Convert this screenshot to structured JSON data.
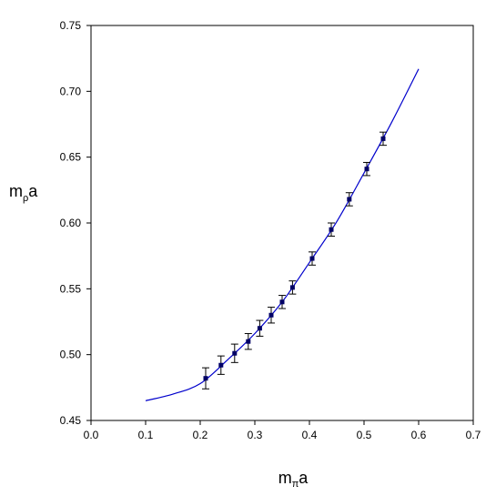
{
  "chart_data": {
    "type": "scatter",
    "title": "",
    "xlabel": {
      "base": "m",
      "sub": "π",
      "suffix": "a"
    },
    "ylabel": {
      "base": "m",
      "sub": "ρ",
      "suffix": "a"
    },
    "xlim": [
      0.0,
      0.7
    ],
    "ylim": [
      0.45,
      0.75
    ],
    "x_ticks": [
      0.0,
      0.1,
      0.2,
      0.3,
      0.4,
      0.5,
      0.6,
      0.7
    ],
    "x_tick_labels": [
      "0.0",
      "0.1",
      "0.2",
      "0.3",
      "0.4",
      "0.5",
      "0.6",
      "0.7"
    ],
    "y_ticks": [
      0.45,
      0.5,
      0.55,
      0.6,
      0.65,
      0.7,
      0.75
    ],
    "y_tick_labels": [
      "0.45",
      "0.50",
      "0.55",
      "0.60",
      "0.65",
      "0.70",
      "0.75"
    ],
    "grid": false,
    "legend": "none",
    "colors": {
      "fit_line": "#0000cc",
      "points": "#000066",
      "error_bars": "#000000",
      "axes": "#000000"
    },
    "series": [
      {
        "kind": "points-with-error-bars",
        "points": [
          {
            "x": 0.21,
            "y": 0.482,
            "err": 0.008
          },
          {
            "x": 0.238,
            "y": 0.492,
            "err": 0.007
          },
          {
            "x": 0.263,
            "y": 0.501,
            "err": 0.007
          },
          {
            "x": 0.288,
            "y": 0.51,
            "err": 0.006
          },
          {
            "x": 0.309,
            "y": 0.52,
            "err": 0.006
          },
          {
            "x": 0.33,
            "y": 0.53,
            "err": 0.006
          },
          {
            "x": 0.35,
            "y": 0.54,
            "err": 0.005
          },
          {
            "x": 0.369,
            "y": 0.551,
            "err": 0.005
          },
          {
            "x": 0.405,
            "y": 0.573,
            "err": 0.005
          },
          {
            "x": 0.44,
            "y": 0.595,
            "err": 0.005
          },
          {
            "x": 0.473,
            "y": 0.618,
            "err": 0.005
          },
          {
            "x": 0.505,
            "y": 0.641,
            "err": 0.005
          },
          {
            "x": 0.535,
            "y": 0.664,
            "err": 0.005
          }
        ]
      },
      {
        "kind": "fit-curve",
        "points": [
          {
            "x": 0.1,
            "y": 0.465
          },
          {
            "x": 0.15,
            "y": 0.47
          },
          {
            "x": 0.2,
            "y": 0.478
          },
          {
            "x": 0.25,
            "y": 0.496
          },
          {
            "x": 0.3,
            "y": 0.516
          },
          {
            "x": 0.35,
            "y": 0.54
          },
          {
            "x": 0.4,
            "y": 0.57
          },
          {
            "x": 0.45,
            "y": 0.601
          },
          {
            "x": 0.5,
            "y": 0.638
          },
          {
            "x": 0.55,
            "y": 0.676
          },
          {
            "x": 0.6,
            "y": 0.717
          }
        ]
      }
    ]
  }
}
